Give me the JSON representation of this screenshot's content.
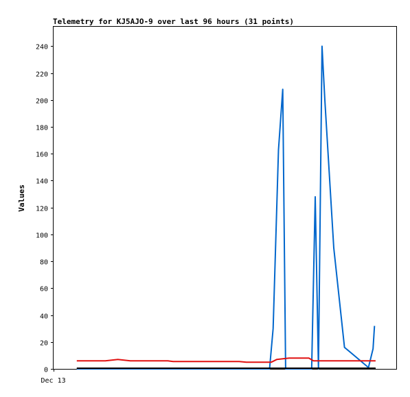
{
  "chart_data": {
    "type": "line",
    "title": "Telemetry for KJ5AJO-9 over last 96 hours (31 points)",
    "ylabel": "Values",
    "xlabel": "",
    "x_tick_labels": [
      {
        "label": "Dec 13",
        "x": 0
      }
    ],
    "xlim": [
      0,
      96
    ],
    "ylim": [
      0,
      255
    ],
    "y_ticks": [
      0,
      20,
      40,
      60,
      80,
      100,
      120,
      140,
      160,
      180,
      200,
      220,
      240
    ],
    "grid": false,
    "legend": "none",
    "series": [
      {
        "color": "#0066cc",
        "points": [
          [
            6.5,
            0
          ],
          [
            19.5,
            0
          ],
          [
            38.5,
            0
          ],
          [
            60.5,
            0
          ],
          [
            61.5,
            30
          ],
          [
            63.0,
            163
          ],
          [
            64.2,
            208
          ],
          [
            65.0,
            0
          ],
          [
            72.3,
            0
          ],
          [
            73.3,
            128
          ],
          [
            74.2,
            0
          ],
          [
            75.2,
            240
          ],
          [
            76.0,
            200
          ],
          [
            78.5,
            90
          ],
          [
            81.5,
            16
          ],
          [
            88.2,
            1
          ],
          [
            89.5,
            15
          ],
          [
            89.9,
            32
          ]
        ]
      },
      {
        "color": "#e01010",
        "points": [
          [
            6.5,
            6
          ],
          [
            14.5,
            6
          ],
          [
            18.0,
            7
          ],
          [
            21.5,
            6
          ],
          [
            32.0,
            6
          ],
          [
            33.5,
            5.5
          ],
          [
            52.0,
            5.5
          ],
          [
            54.0,
            5
          ],
          [
            61.0,
            5
          ],
          [
            62.5,
            7
          ],
          [
            66.0,
            8
          ],
          [
            71.5,
            8
          ],
          [
            72.8,
            6
          ],
          [
            90.2,
            6
          ]
        ]
      },
      {
        "color": "#000000",
        "points": [
          [
            6.5,
            0.5
          ],
          [
            90.2,
            0.5
          ]
        ]
      }
    ]
  }
}
